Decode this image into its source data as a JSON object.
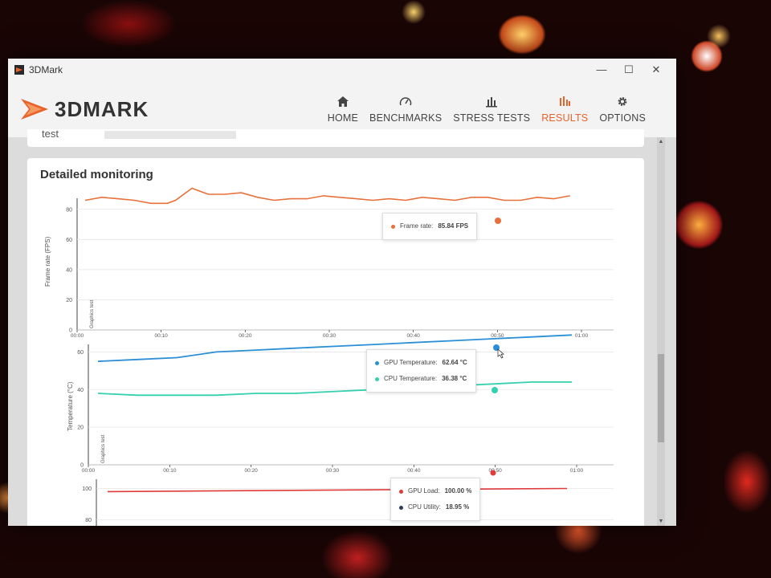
{
  "window": {
    "title": "3DMark",
    "controls": [
      "—",
      "☐",
      "✕"
    ]
  },
  "brand": {
    "logo_text": "3DMARK",
    "accent": "#e8632b"
  },
  "nav": [
    {
      "label": "HOME",
      "icon": "home-icon"
    },
    {
      "label": "BENCHMARKS",
      "icon": "gauge-icon"
    },
    {
      "label": "STRESS TESTS",
      "icon": "bar-chart-icon"
    },
    {
      "label": "RESULTS",
      "icon": "results-icon",
      "active": true
    },
    {
      "label": "OPTIONS",
      "icon": "gear-icon"
    }
  ],
  "prev_card": {
    "label": "test"
  },
  "section": {
    "title": "Detailed monitoring"
  },
  "charts": {
    "time_ticks": [
      "00:00",
      "00:10",
      "00:20",
      "00:30",
      "00:40",
      "00:50",
      "01:00"
    ],
    "band_label": "Graphics test",
    "fps": {
      "ylabel": "Frame rate (FPS)",
      "yticks": [
        "0",
        "20",
        "40",
        "60",
        "80"
      ],
      "color": "#e8703a",
      "tooltip": {
        "label": "Frame rate:",
        "value": "85.84 FPS"
      }
    },
    "temp": {
      "ylabel": "Temperature (°C)",
      "yticks": [
        "0",
        "20",
        "40",
        "60"
      ],
      "gpu": {
        "color": "#2a8fd6",
        "label": "GPU Temperature:",
        "value": "62.64 °C"
      },
      "cpu": {
        "color": "#35d0b0",
        "label": "CPU Temperature:",
        "value": "36.38 °C"
      }
    },
    "load": {
      "ylabel": "(%)",
      "yticks": [
        "80",
        "100"
      ],
      "gpu": {
        "color": "#e03a3a",
        "label": "GPU Load:",
        "value": "100.00 %"
      },
      "cpu": {
        "color": "#2e3a5c",
        "label": "CPU Utility:",
        "value": "18.95 %"
      }
    }
  },
  "chart_data": [
    {
      "type": "line",
      "ylabel": "Frame rate (FPS)",
      "ylim": [
        0,
        90
      ],
      "x": [
        "00:00",
        "00:02",
        "00:04",
        "00:06",
        "00:08",
        "00:10",
        "00:11",
        "00:13",
        "00:15",
        "00:17",
        "00:19",
        "00:21",
        "00:23",
        "00:25",
        "00:27",
        "00:29",
        "00:31",
        "00:33",
        "00:35",
        "00:37",
        "00:39",
        "00:41",
        "00:43",
        "00:45",
        "00:47",
        "00:49",
        "00:51",
        "00:53",
        "00:55",
        "00:57",
        "00:59"
      ],
      "series": [
        {
          "values": [
            86,
            88,
            87,
            86,
            84,
            84,
            86,
            94,
            90,
            90,
            91,
            88,
            86,
            87,
            87,
            89,
            88,
            87,
            86,
            87,
            86,
            88,
            87,
            86,
            88,
            88,
            86,
            86,
            88,
            87,
            89
          ]
        }
      ]
    },
    {
      "type": "line",
      "ylabel": "Temperature (°C)",
      "ylim": [
        0,
        70
      ],
      "x": [
        "00:00",
        "00:05",
        "00:10",
        "00:15",
        "00:20",
        "00:25",
        "00:30",
        "00:35",
        "00:40",
        "00:45",
        "00:50",
        "00:55",
        "01:00"
      ],
      "series": [
        {
          "name": "GPU Temperature",
          "values": [
            55,
            56,
            57,
            60,
            61,
            62,
            63,
            64,
            65,
            66,
            67,
            68,
            69
          ]
        },
        {
          "name": "CPU Temperature",
          "values": [
            38,
            37,
            37,
            37,
            38,
            38,
            39,
            40,
            41,
            42,
            43,
            44,
            44
          ]
        }
      ]
    },
    {
      "type": "line",
      "ylabel": "(%)",
      "ylim": [
        70,
        110
      ],
      "x": [
        "00:00",
        "00:30",
        "01:00"
      ],
      "series": [
        {
          "name": "GPU Load",
          "values": [
            98,
            99,
            100
          ]
        }
      ]
    }
  ]
}
